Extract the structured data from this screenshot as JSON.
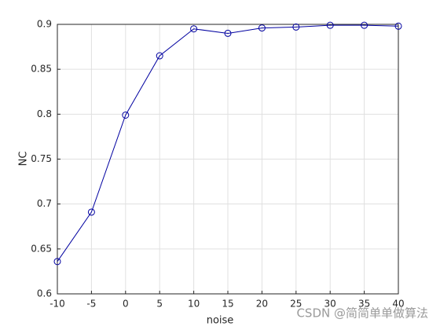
{
  "chart_data": {
    "type": "line",
    "xlabel": "noise",
    "ylabel": "NC",
    "x": [
      -10,
      -5,
      0,
      5,
      10,
      15,
      20,
      25,
      30,
      35,
      40
    ],
    "series": [
      {
        "color": "#0000a0",
        "marker": "circle",
        "values": [
          0.636,
          0.691,
          0.799,
          0.865,
          0.895,
          0.89,
          0.896,
          0.897,
          0.899,
          0.899,
          0.898
        ]
      }
    ],
    "xlim": [
      -10,
      40
    ],
    "xticks": [
      -10,
      -5,
      0,
      5,
      10,
      15,
      20,
      25,
      30,
      35,
      40
    ],
    "ylim": [
      0.6,
      0.9
    ],
    "yticks": [
      0.6,
      0.65,
      0.7,
      0.75,
      0.8,
      0.85,
      0.9
    ],
    "grid": true
  },
  "watermark": "CSDN @简简单单做算法"
}
